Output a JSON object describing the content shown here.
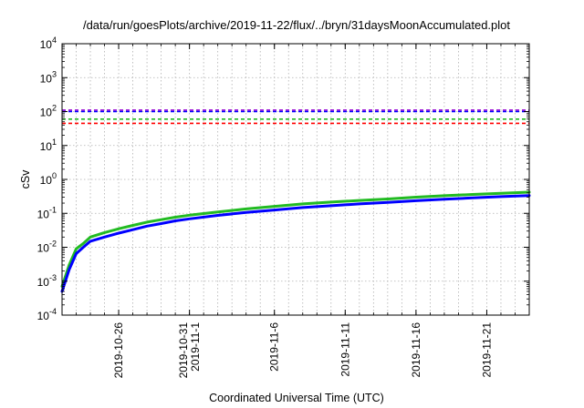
{
  "chart_data": {
    "type": "line",
    "title": "/data/run/goesPlots/archive/2019-11-22/flux/../bryn/31daysMoonAccumulated.plot",
    "xlabel": "Coordinated Universal Time (UTC)",
    "ylabel": "cSv",
    "xlim": [
      "2019-10-22",
      "2019-11-24"
    ],
    "yscale": "log",
    "ylim": [
      0.0001,
      10000
    ],
    "y_ticks": [
      {
        "base": "10",
        "exp": "-4"
      },
      {
        "base": "10",
        "exp": "-3"
      },
      {
        "base": "10",
        "exp": "-2"
      },
      {
        "base": "10",
        "exp": "-1"
      },
      {
        "base": "10",
        "exp": "0"
      },
      {
        "base": "10",
        "exp": "1"
      },
      {
        "base": "10",
        "exp": "2"
      },
      {
        "base": "10",
        "exp": "3"
      },
      {
        "base": "10",
        "exp": "4"
      }
    ],
    "x_ticks": [
      {
        "date": "2019-10-26",
        "lines": [
          "2019-10-26"
        ]
      },
      {
        "date": "2019-10-31",
        "lines": [
          "2019-10-31",
          "2019-11-1"
        ]
      },
      {
        "date": "2019-11-06",
        "lines": [
          "2019-11-6"
        ]
      },
      {
        "date": "2019-11-11",
        "lines": [
          "2019-11-11"
        ]
      },
      {
        "date": "2019-11-16",
        "lines": [
          "2019-11-16"
        ]
      },
      {
        "date": "2019-11-21",
        "lines": [
          "2019-11-21"
        ]
      }
    ],
    "grid": true,
    "threshold_lines": [
      {
        "value": 110,
        "color": "#9400d3"
      },
      {
        "value": 100,
        "color": "#0000ff"
      },
      {
        "value": 60,
        "color": "#22bb22"
      },
      {
        "value": 45,
        "color": "#ff0000"
      }
    ],
    "series": [
      {
        "color": "#22bb22",
        "x": [
          "2019-10-22",
          "2019-10-22T12:00",
          "2019-10-23",
          "2019-10-23T12:00",
          "2019-10-24",
          "2019-10-25",
          "2019-10-26",
          "2019-10-27",
          "2019-10-28",
          "2019-10-29",
          "2019-10-30",
          "2019-10-31",
          "2019-11-02",
          "2019-11-04",
          "2019-11-06",
          "2019-11-08",
          "2019-11-10",
          "2019-11-12",
          "2019-11-14",
          "2019-11-16",
          "2019-11-18",
          "2019-11-20",
          "2019-11-22",
          "2019-11-24"
        ],
        "values": [
          0.0007,
          0.003,
          0.009,
          0.013,
          0.02,
          0.027,
          0.035,
          0.044,
          0.055,
          0.065,
          0.077,
          0.088,
          0.11,
          0.135,
          0.16,
          0.19,
          0.215,
          0.24,
          0.265,
          0.3,
          0.33,
          0.36,
          0.39,
          0.42
        ]
      },
      {
        "color": "#0000ff",
        "x": [
          "2019-10-22",
          "2019-10-22T12:00",
          "2019-10-23",
          "2019-10-23T12:00",
          "2019-10-24",
          "2019-10-25",
          "2019-10-26",
          "2019-10-27",
          "2019-10-28",
          "2019-10-29",
          "2019-10-30",
          "2019-10-31",
          "2019-11-02",
          "2019-11-04",
          "2019-11-06",
          "2019-11-08",
          "2019-11-10",
          "2019-11-12",
          "2019-11-14",
          "2019-11-16",
          "2019-11-18",
          "2019-11-20",
          "2019-11-22",
          "2019-11-24"
        ],
        "values": [
          0.0005,
          0.0022,
          0.0065,
          0.01,
          0.015,
          0.02,
          0.026,
          0.033,
          0.042,
          0.05,
          0.06,
          0.069,
          0.087,
          0.106,
          0.125,
          0.148,
          0.168,
          0.19,
          0.21,
          0.235,
          0.26,
          0.285,
          0.31,
          0.335
        ]
      }
    ]
  }
}
